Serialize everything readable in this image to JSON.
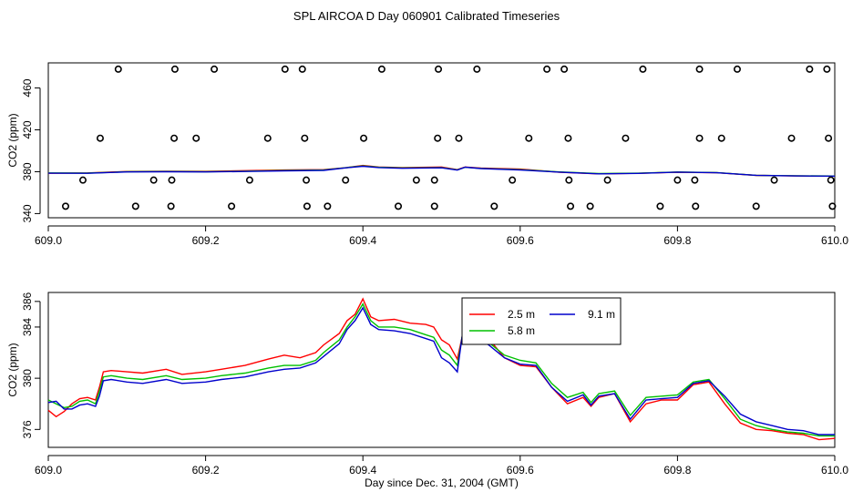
{
  "page": {
    "title": "SPL AIRCOA D  Day 060901  Calibrated Timeseries"
  },
  "chart_data": [
    {
      "type": "scatter",
      "xlabel": "Day since Dec. 31, 2004 (GMT)",
      "ylabel": "CO2 (ppm)",
      "xlim": [
        609.0,
        610.0
      ],
      "ylim": [
        336,
        484
      ],
      "xticks": [
        609.0,
        609.2,
        609.4,
        609.6,
        609.8,
        610.0
      ],
      "xtick_labels": [
        "609.0",
        "609.2",
        "609.4",
        "609.6",
        "609.8",
        "610.0"
      ],
      "yticks": [
        340,
        380,
        420,
        460
      ],
      "ytick_labels": [
        "340",
        "380",
        "420",
        "460"
      ],
      "grid": false,
      "calibration_points": {
        "marker": "open-circle",
        "x": [
          609.089,
          609.161,
          609.211,
          609.301,
          609.323,
          609.424,
          609.496,
          609.545,
          609.634,
          609.656,
          609.756,
          609.828,
          609.876,
          609.968,
          609.99,
          609.066,
          609.16,
          609.188,
          609.279,
          609.326,
          609.401,
          609.495,
          609.522,
          609.611,
          609.661,
          609.734,
          609.828,
          609.856,
          609.945,
          609.992,
          609.044,
          609.134,
          609.157,
          609.256,
          609.328,
          609.378,
          609.468,
          609.491,
          609.59,
          609.662,
          609.711,
          609.8,
          609.822,
          609.923,
          609.995,
          609.022,
          609.111,
          609.156,
          609.233,
          609.329,
          609.355,
          609.445,
          609.491,
          609.567,
          609.664,
          609.689,
          609.778,
          609.823,
          609.9,
          609.997
        ],
        "y": [
          478,
          478,
          478,
          478,
          478,
          478,
          478,
          478,
          478,
          478,
          478,
          478,
          478,
          478,
          478,
          412,
          412,
          412,
          412,
          412,
          412,
          412,
          412,
          412,
          412,
          412,
          412,
          412,
          412,
          412,
          372,
          372,
          372,
          372,
          372,
          372,
          372,
          372,
          372,
          372,
          372,
          372,
          372,
          372,
          372,
          347,
          347,
          347,
          347,
          347,
          347,
          347,
          347,
          347,
          347,
          347,
          347,
          347,
          347,
          347
        ]
      },
      "series": [
        {
          "color": "#ff0000",
          "x": [
            609.0,
            609.05,
            609.1,
            609.15,
            609.2,
            609.25,
            609.3,
            609.35,
            609.38,
            609.4,
            609.42,
            609.45,
            609.5,
            609.52,
            609.53,
            609.55,
            609.6,
            609.65,
            609.7,
            609.75,
            609.8,
            609.85,
            609.9,
            609.95,
            610.0
          ],
          "y": [
            378.5,
            378.8,
            380.2,
            380.5,
            380.3,
            381.0,
            381.6,
            382.0,
            384.0,
            386.0,
            384.5,
            384.0,
            384.5,
            382.0,
            384.5,
            383.5,
            382.5,
            379.5,
            378.0,
            378.5,
            379.5,
            379.0,
            376.5,
            376.0,
            375.8
          ]
        },
        {
          "color": "#00c000",
          "x": [
            609.0,
            609.05,
            609.1,
            609.15,
            609.2,
            609.25,
            609.3,
            609.35,
            609.38,
            609.4,
            609.42,
            609.45,
            609.5,
            609.52,
            609.53,
            609.55,
            609.6,
            609.65,
            609.7,
            609.75,
            609.8,
            609.85,
            609.9,
            609.95,
            610.0
          ],
          "y": [
            378.8,
            378.7,
            380.0,
            380.2,
            380.0,
            380.5,
            381.2,
            381.6,
            384.0,
            385.5,
            384.2,
            383.6,
            384.0,
            381.8,
            384.2,
            383.2,
            382.0,
            379.8,
            378.2,
            378.6,
            379.7,
            379.2,
            376.6,
            376.1,
            375.9
          ]
        },
        {
          "color": "#0000cc",
          "x": [
            609.0,
            609.05,
            609.1,
            609.15,
            609.2,
            609.25,
            609.3,
            609.35,
            609.38,
            609.4,
            609.42,
            609.45,
            609.5,
            609.52,
            609.53,
            609.55,
            609.6,
            609.65,
            609.7,
            609.75,
            609.8,
            609.85,
            609.9,
            609.95,
            610.0
          ],
          "y": [
            378.6,
            378.5,
            379.8,
            380.0,
            379.8,
            380.2,
            380.8,
            381.3,
            383.8,
            385.2,
            384.0,
            383.3,
            383.7,
            381.5,
            384.3,
            383.0,
            381.6,
            379.6,
            378.0,
            378.4,
            379.6,
            379.0,
            376.6,
            376.0,
            375.8
          ]
        }
      ]
    },
    {
      "type": "line",
      "xlabel": "Day since Dec. 31, 2004 (GMT)",
      "ylabel": "CO2 (ppm)",
      "xlim": [
        609.0,
        610.0
      ],
      "ylim": [
        374.6,
        386.7
      ],
      "xticks": [
        609.0,
        609.2,
        609.4,
        609.6,
        609.8,
        610.0
      ],
      "xtick_labels": [
        "609.0",
        "609.2",
        "609.4",
        "609.6",
        "609.8",
        "610.0"
      ],
      "yticks": [
        376,
        380,
        384,
        386
      ],
      "ytick_labels": [
        "376",
        "380",
        "384",
        "386"
      ],
      "grid": false,
      "legend_position": "top-center",
      "series": [
        {
          "name": "2.5 m",
          "color": "#ff0000",
          "x": [
            609.0,
            609.01,
            609.02,
            609.03,
            609.04,
            609.05,
            609.06,
            609.065,
            609.07,
            609.08,
            609.1,
            609.12,
            609.15,
            609.17,
            609.2,
            609.22,
            609.25,
            609.28,
            609.3,
            609.32,
            609.34,
            609.35,
            609.37,
            609.38,
            609.39,
            609.4,
            609.41,
            609.42,
            609.44,
            609.46,
            609.48,
            609.49,
            609.5,
            609.51,
            609.52,
            609.53,
            609.54,
            609.56,
            609.58,
            609.6,
            609.62,
            609.64,
            609.66,
            609.68,
            609.69,
            609.7,
            609.72,
            609.74,
            609.76,
            609.78,
            609.8,
            609.82,
            609.84,
            609.86,
            609.88,
            609.9,
            609.92,
            609.94,
            609.96,
            609.98,
            610.0
          ],
          "y": [
            377.5,
            377.0,
            377.4,
            378.0,
            378.4,
            378.5,
            378.3,
            379.3,
            380.5,
            380.6,
            380.5,
            380.4,
            380.7,
            380.3,
            380.5,
            380.7,
            381.0,
            381.5,
            381.8,
            381.6,
            382.0,
            382.6,
            383.5,
            384.5,
            385.0,
            386.2,
            384.8,
            384.5,
            384.6,
            384.3,
            384.2,
            384.0,
            383.0,
            382.6,
            381.5,
            384.3,
            383.6,
            383.1,
            381.6,
            381.0,
            380.9,
            379.3,
            378.0,
            378.5,
            377.8,
            378.5,
            378.8,
            376.6,
            378.0,
            378.3,
            378.3,
            379.5,
            379.7,
            378.0,
            376.5,
            376.0,
            375.9,
            375.7,
            375.6,
            375.2,
            375.3
          ]
        },
        {
          "name": "5.8 m",
          "color": "#00c000",
          "x": [
            609.0,
            609.01,
            609.02,
            609.03,
            609.04,
            609.05,
            609.06,
            609.065,
            609.07,
            609.08,
            609.1,
            609.12,
            609.15,
            609.17,
            609.2,
            609.22,
            609.25,
            609.28,
            609.3,
            609.32,
            609.34,
            609.35,
            609.37,
            609.38,
            609.39,
            609.4,
            609.41,
            609.42,
            609.44,
            609.46,
            609.48,
            609.49,
            609.5,
            609.51,
            609.52,
            609.53,
            609.54,
            609.56,
            609.58,
            609.6,
            609.62,
            609.64,
            609.66,
            609.68,
            609.69,
            609.7,
            609.72,
            609.74,
            609.76,
            609.78,
            609.8,
            609.82,
            609.84,
            609.86,
            609.88,
            609.9,
            609.92,
            609.94,
            609.96,
            609.98,
            610.0
          ],
          "y": [
            378.3,
            378.0,
            377.7,
            377.8,
            378.2,
            378.3,
            378.0,
            379.0,
            380.1,
            380.2,
            380.0,
            379.9,
            380.2,
            379.9,
            380.0,
            380.2,
            380.4,
            380.8,
            381.0,
            381.0,
            381.4,
            382.0,
            383.0,
            384.0,
            384.8,
            385.8,
            384.5,
            384.0,
            384.0,
            383.8,
            383.4,
            383.2,
            382.2,
            381.8,
            381.0,
            384.6,
            383.3,
            382.8,
            381.8,
            381.4,
            381.2,
            379.6,
            378.5,
            378.9,
            378.1,
            378.8,
            379.0,
            377.1,
            378.5,
            378.6,
            378.7,
            379.7,
            379.9,
            378.4,
            376.8,
            376.3,
            376.0,
            375.8,
            375.7,
            375.5,
            375.5
          ]
        },
        {
          "name": "9.1 m",
          "color": "#0000cc",
          "x": [
            609.0,
            609.01,
            609.02,
            609.03,
            609.04,
            609.05,
            609.06,
            609.065,
            609.07,
            609.08,
            609.1,
            609.12,
            609.15,
            609.17,
            609.2,
            609.22,
            609.25,
            609.28,
            609.3,
            609.32,
            609.34,
            609.35,
            609.37,
            609.38,
            609.39,
            609.4,
            609.41,
            609.42,
            609.44,
            609.46,
            609.48,
            609.49,
            609.5,
            609.51,
            609.52,
            609.53,
            609.54,
            609.56,
            609.58,
            609.6,
            609.62,
            609.64,
            609.66,
            609.68,
            609.69,
            609.7,
            609.72,
            609.74,
            609.76,
            609.78,
            609.8,
            609.82,
            609.84,
            609.86,
            609.88,
            609.9,
            609.92,
            609.94,
            609.96,
            609.98,
            610.0
          ],
          "y": [
            378.1,
            378.2,
            377.6,
            377.6,
            377.9,
            378.0,
            377.8,
            378.6,
            379.8,
            379.9,
            379.7,
            379.6,
            379.9,
            379.6,
            379.7,
            379.9,
            380.1,
            380.5,
            380.7,
            380.8,
            381.2,
            381.7,
            382.7,
            383.8,
            384.5,
            385.5,
            384.2,
            383.8,
            383.7,
            383.5,
            383.1,
            382.9,
            381.6,
            381.2,
            380.5,
            385.0,
            383.4,
            382.6,
            381.6,
            381.1,
            381.0,
            379.3,
            378.2,
            378.7,
            377.9,
            378.6,
            378.8,
            376.8,
            378.3,
            378.4,
            378.5,
            379.6,
            379.8,
            378.6,
            377.2,
            376.6,
            376.3,
            376.0,
            375.9,
            375.6,
            375.6
          ]
        }
      ]
    }
  ]
}
